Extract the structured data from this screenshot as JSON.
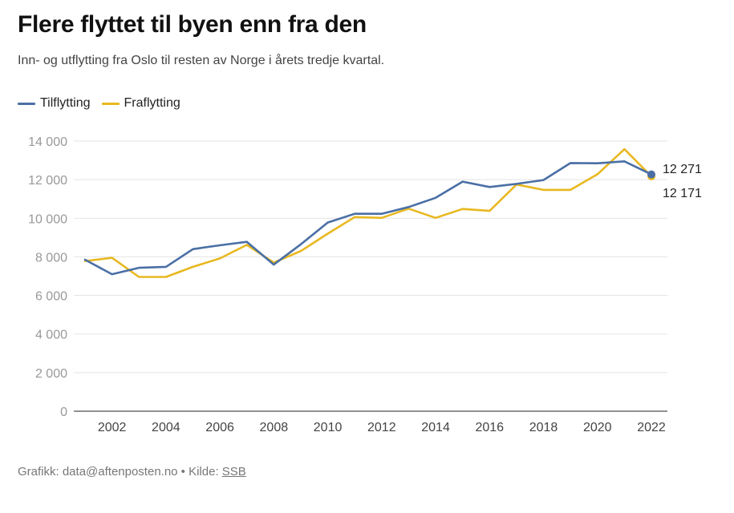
{
  "header": {
    "title": "Flere flyttet til byen enn fra den",
    "subtitle": "Inn- og utflytting fra Oslo til resten av Norge i årets tredje kvartal."
  },
  "footer": {
    "credit": "Grafikk: data@aftenposten.no • Kilde: ",
    "source_link": "SSB"
  },
  "colors": {
    "tilflytting": "#4a6fa5",
    "fraflytting": "#e8b820"
  },
  "chart_data": {
    "type": "line",
    "title": "Flere flyttet til byen enn fra den",
    "x": [
      2001,
      2002,
      2003,
      2004,
      2005,
      2006,
      2007,
      2008,
      2009,
      2010,
      2011,
      2012,
      2013,
      2014,
      2015,
      2016,
      2017,
      2018,
      2019,
      2020,
      2021,
      2022
    ],
    "x_ticks": [
      "2002",
      "2004",
      "2006",
      "2008",
      "2010",
      "2012",
      "2014",
      "2016",
      "2018",
      "2020",
      "2022"
    ],
    "y_ticks": [
      "0",
      "2 000",
      "4 000",
      "6 000",
      "8 000",
      "10 000",
      "12 000",
      "14 000"
    ],
    "ylim": [
      0,
      14000
    ],
    "grid": true,
    "legend_position": "top-left",
    "series": [
      {
        "name": "Tilflytting",
        "values": [
          7850,
          7100,
          7430,
          7480,
          8400,
          8600,
          8780,
          7600,
          8650,
          9780,
          10230,
          10230,
          10580,
          11060,
          11900,
          11620,
          11780,
          11980,
          12860,
          12850,
          12950,
          12271
        ],
        "end_label": "12 271"
      },
      {
        "name": "Fraflytting",
        "values": [
          7780,
          7950,
          6960,
          6960,
          7480,
          7920,
          8620,
          7700,
          8300,
          9200,
          10060,
          10020,
          10500,
          10020,
          10480,
          10380,
          11750,
          11470,
          11470,
          12280,
          13580,
          12171
        ],
        "end_label": "12 171"
      }
    ]
  }
}
